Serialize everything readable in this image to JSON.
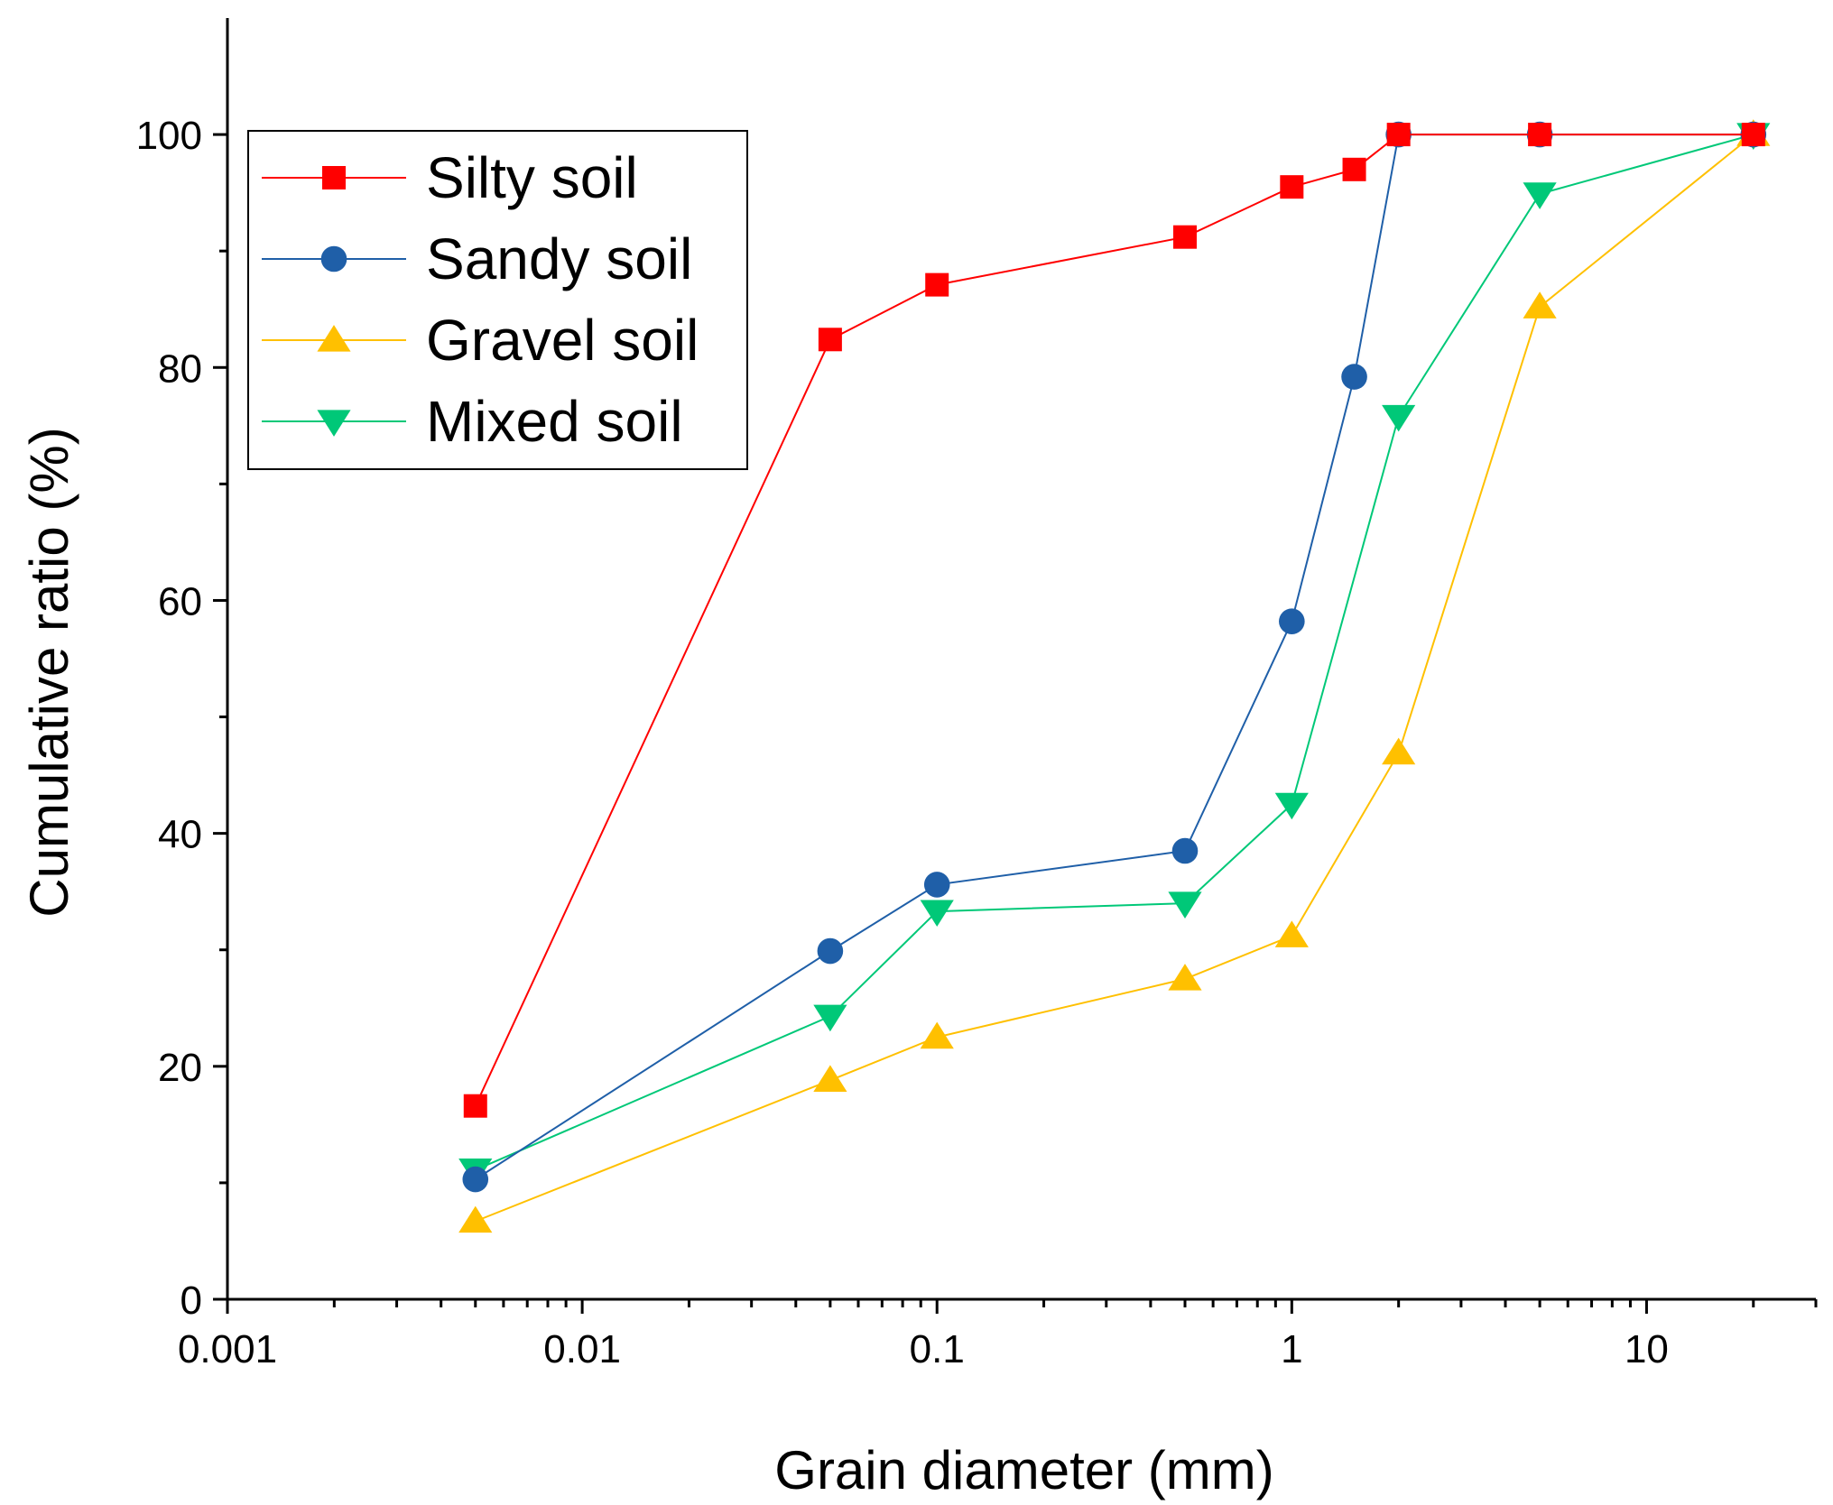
{
  "chart_data": {
    "type": "line",
    "title": "",
    "xlabel": "Grain diameter (mm)",
    "ylabel": "Cumulative ratio (%)",
    "xscale": "log",
    "xlim": [
      0.001,
      30
    ],
    "ylim": [
      0,
      110
    ],
    "xticks": [
      0.001,
      0.01,
      0.1,
      1,
      10
    ],
    "xtick_labels": [
      "0.001",
      "0.01",
      "0.1",
      "1",
      "10"
    ],
    "yticks": [
      0,
      20,
      40,
      60,
      80,
      100
    ],
    "ytick_labels": [
      "0",
      "20",
      "40",
      "60",
      "80",
      "100"
    ],
    "grid": false,
    "legend_position": "top-left",
    "series": [
      {
        "name": "Silty soil",
        "color": "#ff0000",
        "marker": "square",
        "x": [
          0.005,
          0.05,
          0.1,
          0.5,
          1,
          1.5,
          2,
          5,
          20
        ],
        "y": [
          16.6,
          82.4,
          87.1,
          91.2,
          95.5,
          97.0,
          100,
          100,
          100
        ]
      },
      {
        "name": "Sandy soil",
        "color": "#1f5fa8",
        "marker": "circle",
        "x": [
          0.005,
          0.05,
          0.1,
          0.5,
          1,
          1.5,
          2,
          5,
          20
        ],
        "y": [
          10.3,
          29.9,
          35.6,
          38.5,
          58.2,
          79.2,
          100,
          100,
          100
        ]
      },
      {
        "name": "Gravel soil",
        "color": "#ffc000",
        "marker": "triangle-up",
        "x": [
          0.005,
          0.05,
          0.1,
          0.5,
          1,
          2,
          5,
          20
        ],
        "y": [
          6.7,
          18.8,
          22.5,
          27.5,
          31.2,
          46.9,
          85.2,
          100
        ]
      },
      {
        "name": "Mixed soil",
        "color": "#00c878",
        "marker": "triangle-down",
        "x": [
          0.005,
          0.05,
          0.1,
          0.5,
          1,
          2,
          5,
          20
        ],
        "y": [
          11.1,
          24.3,
          33.3,
          34.0,
          42.5,
          75.8,
          94.9,
          100
        ]
      }
    ]
  }
}
